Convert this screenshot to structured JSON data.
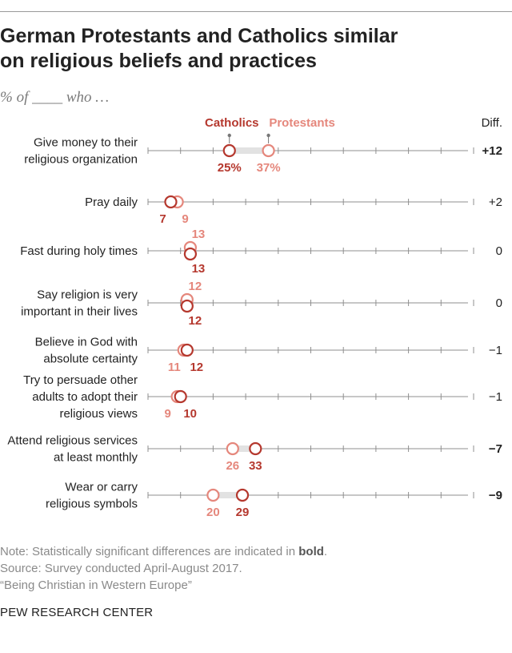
{
  "title_lines": [
    "German Protestants and Catholics similar",
    "on religious beliefs and practices"
  ],
  "subtitle": "% of ____ who …",
  "legend": {
    "catholics": "Catholics",
    "protestants": "Protestants",
    "diff": "Diff."
  },
  "colors": {
    "catholics": "#b5382e",
    "protestants": "#e5877c",
    "connector": "#e2e2e2",
    "axis": "#8f8f8f"
  },
  "chart_data": {
    "type": "dot",
    "title": "German Protestants and Catholics similar on religious beliefs and practices",
    "xlim": [
      0,
      100
    ],
    "series": [
      {
        "name": "Catholics",
        "values": [
          25,
          7,
          13,
          12,
          12,
          10,
          33,
          29
        ]
      },
      {
        "name": "Protestants",
        "values": [
          37,
          9,
          13,
          12,
          11,
          9,
          26,
          20
        ]
      }
    ],
    "rows": [
      {
        "label": [
          "Give money to their",
          "religious organization"
        ],
        "catholic": 25,
        "protestant": 37,
        "cat_text": "25%",
        "pro_text": "37%",
        "diff": "+12",
        "bold": true
      },
      {
        "label": [
          "Pray daily"
        ],
        "catholic": 7,
        "protestant": 9,
        "cat_text": "7",
        "pro_text": "9",
        "diff": "+2",
        "bold": false
      },
      {
        "label": [
          "Fast during holy times"
        ],
        "catholic": 13,
        "protestant": 13,
        "cat_text": "13",
        "pro_text": "13",
        "diff": "0",
        "bold": false
      },
      {
        "label": [
          "Say religion is very",
          "important in their lives"
        ],
        "catholic": 12,
        "protestant": 12,
        "cat_text": "12",
        "pro_text": "12",
        "diff": "0",
        "bold": false
      },
      {
        "label": [
          "Believe in God with",
          "absolute certainty"
        ],
        "catholic": 12,
        "protestant": 11,
        "cat_text": "12",
        "pro_text": "11",
        "diff": "−1",
        "bold": false
      },
      {
        "label": [
          "Try to persuade other",
          "adults to adopt their",
          "religious views"
        ],
        "catholic": 10,
        "protestant": 9,
        "cat_text": "10",
        "pro_text": "9",
        "diff": "−1",
        "bold": false
      },
      {
        "label": [
          "Attend religious services",
          "at least monthly"
        ],
        "catholic": 33,
        "protestant": 26,
        "cat_text": "33",
        "pro_text": "26",
        "diff": "−7",
        "bold": true
      },
      {
        "label": [
          "Wear or carry",
          "religious symbols"
        ],
        "catholic": 29,
        "protestant": 20,
        "cat_text": "29",
        "pro_text": "20",
        "diff": "−9",
        "bold": true
      }
    ]
  },
  "notes": {
    "note_prefix": "Note: Statistically significant differences are indicated in ",
    "note_bold": "bold",
    "note_suffix": ".",
    "source": "Source: Survey conducted April-August 2017.",
    "report": "“Being Christian in Western Europe”"
  },
  "org": "PEW RESEARCH CENTER"
}
